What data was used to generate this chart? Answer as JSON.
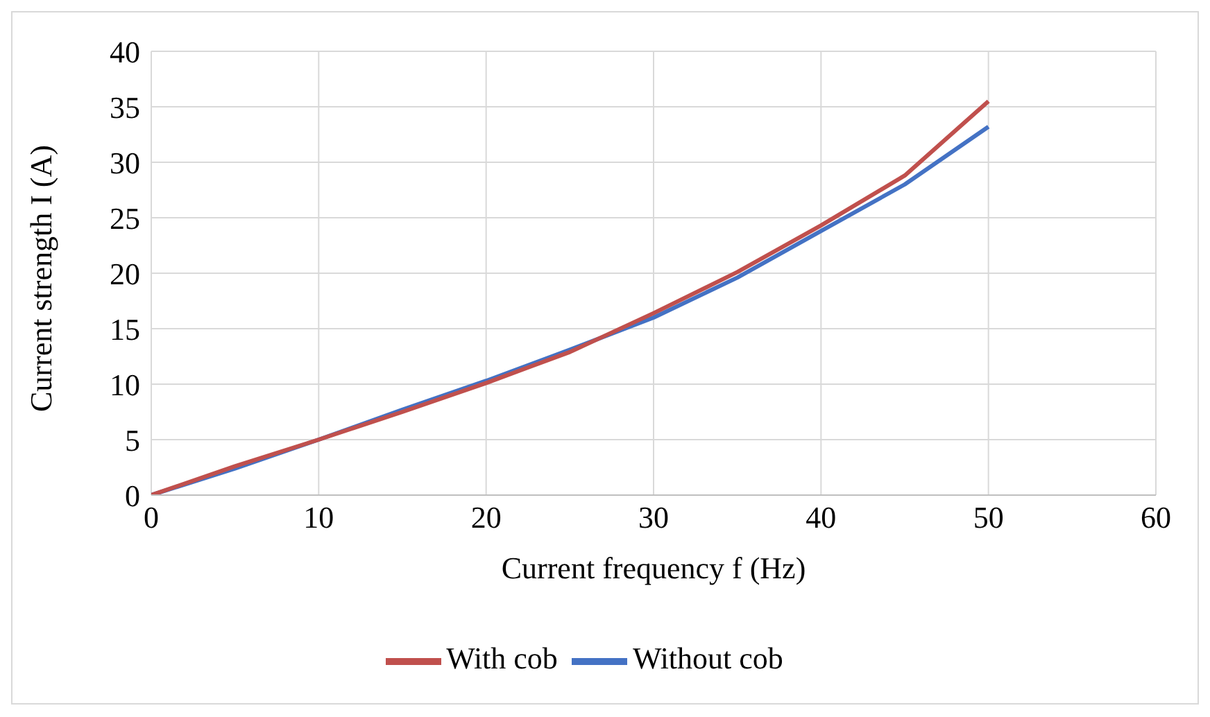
{
  "chart_data": {
    "type": "line",
    "xlabel": "Current frequency f (Hz)",
    "ylabel": "Current strength I (A)",
    "xlim": [
      0,
      60
    ],
    "xticks": [
      0,
      10,
      20,
      30,
      40,
      50,
      60
    ],
    "ylim": [
      0,
      40
    ],
    "yticks": [
      0,
      5,
      10,
      15,
      20,
      25,
      30,
      35,
      40
    ],
    "grid": true,
    "legend": "bottom",
    "marker": "none",
    "line_style": "solid",
    "series": [
      {
        "name": "Without cob",
        "color": "#4472c4",
        "x": [
          0,
          5,
          10,
          15,
          20,
          25,
          30,
          35,
          40,
          45,
          50
        ],
        "values": [
          0,
          2.4,
          5,
          7.7,
          10.3,
          13.1,
          16,
          19.6,
          23.8,
          28,
          33.2
        ]
      },
      {
        "name": "With cob",
        "color": "#c0504d",
        "x": [
          0,
          5,
          10,
          15,
          20,
          25,
          30,
          35,
          40,
          45,
          50
        ],
        "values": [
          0,
          2.6,
          5,
          7.5,
          10.1,
          12.9,
          16.4,
          20.1,
          24.3,
          28.8,
          35.5
        ]
      }
    ]
  }
}
